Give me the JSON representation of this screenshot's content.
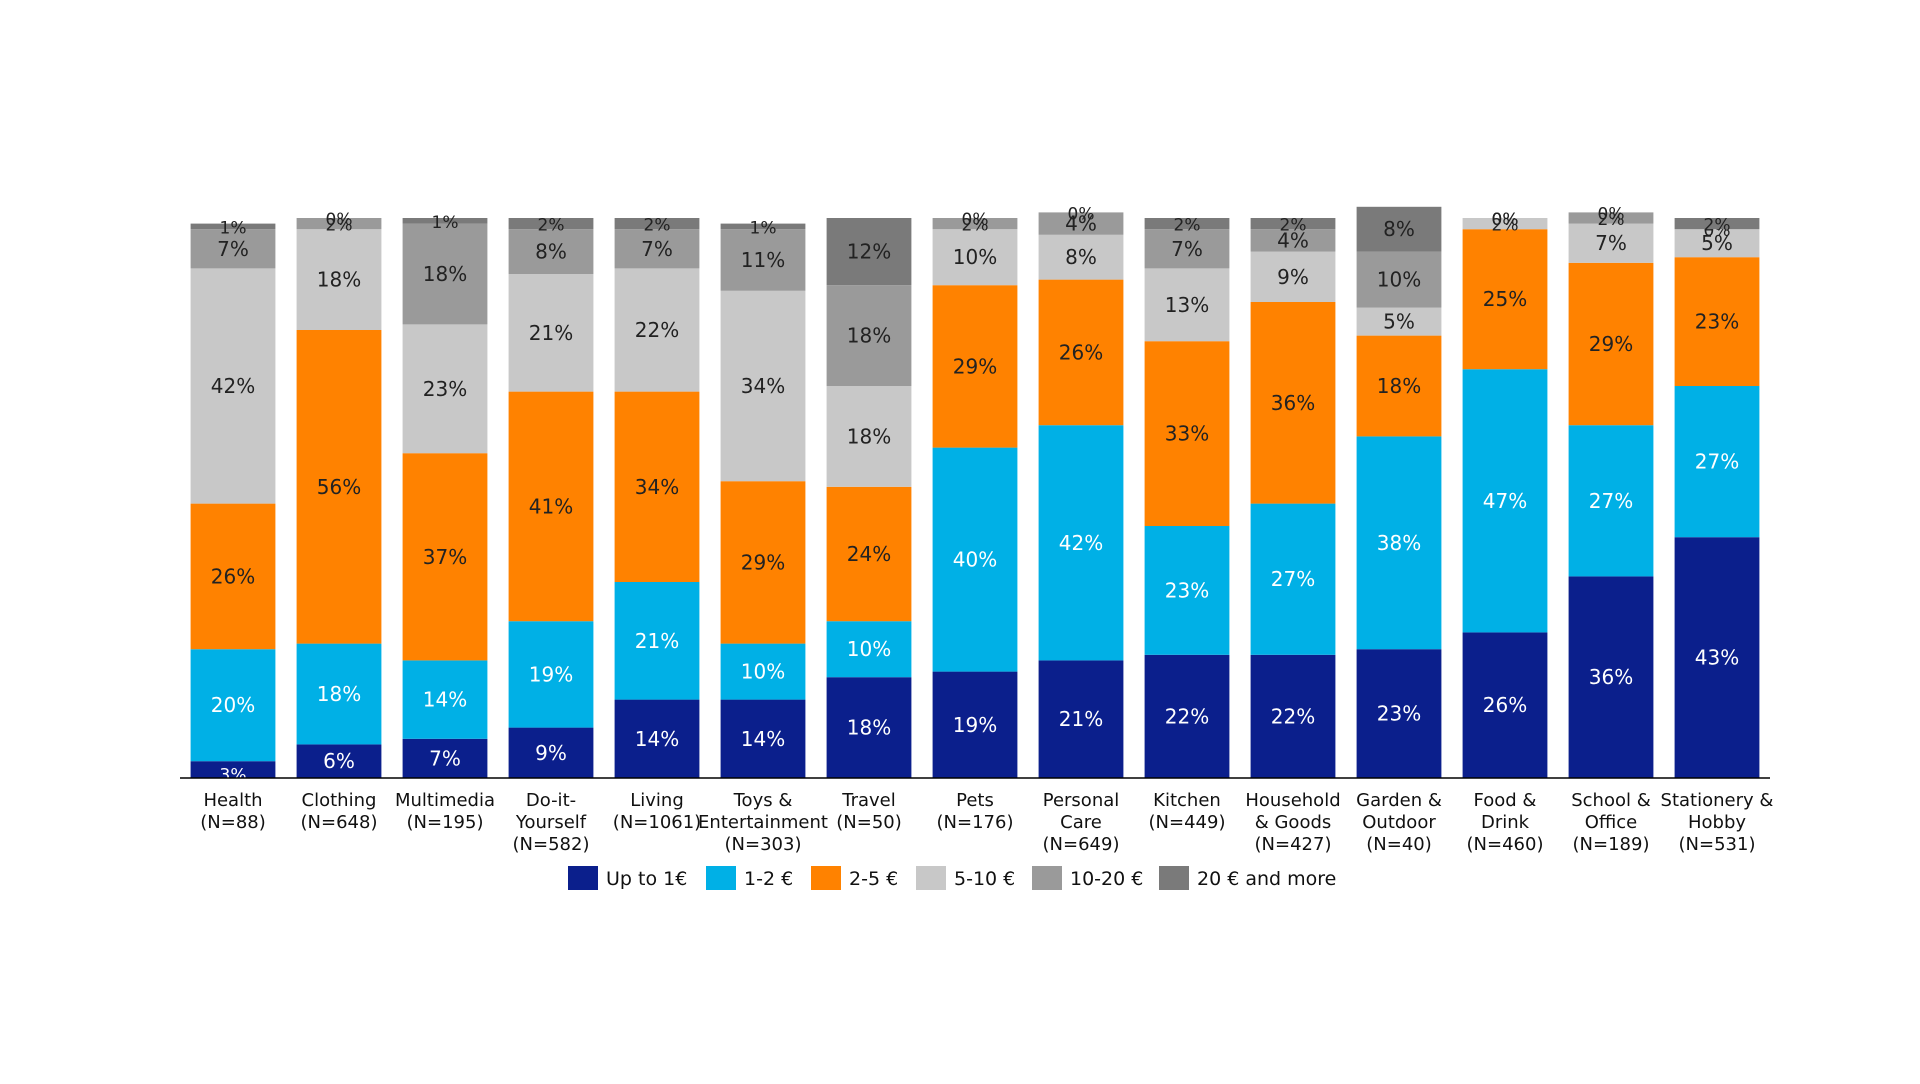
{
  "chart_data": {
    "type": "bar",
    "stacked": true,
    "categories": [
      "Health\n(N=88)",
      "Clothing\n(N=648)",
      "Multimedia\n(N=195)",
      "Do-it-\nYourself\n(N=582)",
      "Living\n(N=1061)",
      "Toys &\nEntertainment\n(N=303)",
      "Travel\n(N=50)",
      "Pets\n(N=176)",
      "Personal\nCare\n(N=649)",
      "Kitchen\n(N=449)",
      "Household\n& Goods\n(N=427)",
      "Garden &\nOutdoor\n(N=40)",
      "Food &\nDrink\n(N=460)",
      "School &\nOffice\n(N=189)",
      "Stationery &\nHobby\n(N=531)"
    ],
    "series": [
      {
        "name": "Up to 1€",
        "color": "#0b1f8c",
        "values": [
          3,
          6,
          7,
          9,
          14,
          14,
          18,
          19,
          21,
          22,
          22,
          23,
          26,
          36,
          43
        ]
      },
      {
        "name": "1-2 €",
        "color": "#00b0e6",
        "values": [
          20,
          18,
          14,
          19,
          21,
          10,
          10,
          40,
          42,
          23,
          27,
          38,
          47,
          27,
          27
        ]
      },
      {
        "name": "2-5 €",
        "color": "#ff8200",
        "values": [
          26,
          56,
          37,
          41,
          34,
          29,
          24,
          29,
          26,
          33,
          36,
          18,
          25,
          29,
          23
        ]
      },
      {
        "name": "5-10 €",
        "color": "#c8c8c8",
        "values": [
          42,
          18,
          23,
          21,
          22,
          34,
          18,
          10,
          8,
          13,
          9,
          5,
          2,
          7,
          5
        ]
      },
      {
        "name": "10-20 €",
        "color": "#9a9a9a",
        "values": [
          7,
          2,
          18,
          8,
          7,
          11,
          18,
          2,
          4,
          7,
          4,
          10,
          0,
          2,
          0
        ]
      },
      {
        "name": "20 € and more",
        "color": "#7a7a7a",
        "values": [
          1,
          0,
          1,
          2,
          2,
          1,
          12,
          0,
          0,
          2,
          2,
          8,
          0,
          0,
          2
        ]
      }
    ],
    "ylim": [
      0,
      100
    ],
    "value_suffix": "%",
    "legend_position": "bottom",
    "title": "",
    "xlabel": "",
    "ylabel": ""
  }
}
